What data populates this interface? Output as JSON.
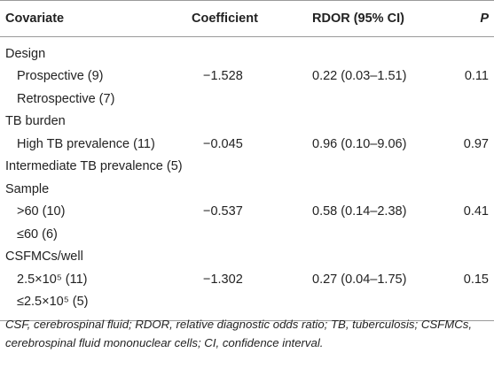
{
  "table": {
    "headers": {
      "covariate": "Covariate",
      "coefficient": "Coefficient",
      "rdor": "RDOR (95% CI)",
      "p": "P"
    },
    "rows": [
      {
        "label": "Design",
        "indent": false,
        "coefficient": "",
        "rdor": "",
        "p": ""
      },
      {
        "label": "Prospective (9)",
        "indent": true,
        "coefficient": "−1.528",
        "rdor": "0.22 (0.03–1.51)",
        "p": "0.11"
      },
      {
        "label": "Retrospective (7)",
        "indent": true,
        "coefficient": "",
        "rdor": "",
        "p": ""
      },
      {
        "label": "TB burden",
        "indent": false,
        "coefficient": "",
        "rdor": "",
        "p": ""
      },
      {
        "label": "High TB prevalence (11)",
        "indent": true,
        "coefficient": "−0.045",
        "rdor": "0.96 (0.10–9.06)",
        "p": "0.97"
      },
      {
        "label": "Intermediate TB prevalence (5)",
        "indent": false,
        "coefficient": "",
        "rdor": "",
        "p": ""
      },
      {
        "label": "Sample",
        "indent": false,
        "coefficient": "",
        "rdor": "",
        "p": ""
      },
      {
        "label": ">60 (10)",
        "indent": true,
        "coefficient": "−0.537",
        "rdor": "0.58 (0.14–2.38)",
        "p": "0.41"
      },
      {
        "label": "≤60 (6)",
        "indent": true,
        "coefficient": "",
        "rdor": "",
        "p": ""
      },
      {
        "label": "CSFMCs/well",
        "indent": false,
        "coefficient": "",
        "rdor": "",
        "p": ""
      },
      {
        "label": "2.5×10⁵ (11)",
        "indent": true,
        "coefficient": "−1.302",
        "rdor": "0.27 (0.04–1.75)",
        "p": "0.15"
      },
      {
        "label": "≤2.5×10⁵ (5)",
        "indent": true,
        "coefficient": "",
        "rdor": "",
        "p": ""
      }
    ]
  },
  "footnote": "CSF, cerebrospinal fluid; RDOR, relative diagnostic odds ratio; TB, tuberculosis; CSFMCs, cerebrospinal fluid mononuclear cells; CI, confidence interval."
}
